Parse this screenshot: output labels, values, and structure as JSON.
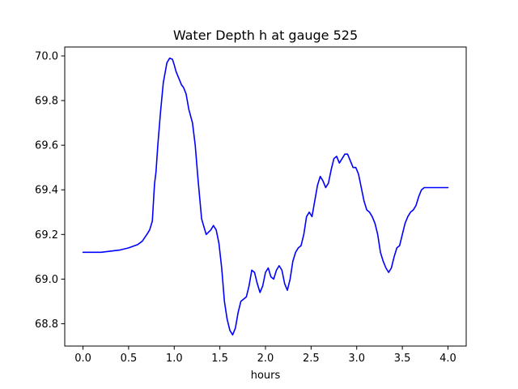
{
  "chart_data": {
    "type": "line",
    "title": "Water Depth h at gauge 525",
    "xlabel": "hours",
    "ylabel": "",
    "xlim": [
      -0.2,
      4.2
    ],
    "ylim": [
      68.7,
      70.04
    ],
    "grid": false,
    "legend": "none",
    "xticks": [
      0.0,
      0.5,
      1.0,
      1.5,
      2.0,
      2.5,
      3.0,
      3.5,
      4.0
    ],
    "xtick_labels": [
      "0.0",
      "0.5",
      "1.0",
      "1.5",
      "2.0",
      "2.5",
      "3.0",
      "3.5",
      "4.0"
    ],
    "yticks": [
      68.8,
      69.0,
      69.2,
      69.4,
      69.6,
      69.8,
      70.0
    ],
    "ytick_labels": [
      "68.8",
      "69.0",
      "69.2",
      "69.4",
      "69.6",
      "69.8",
      "70.0"
    ],
    "series": [
      {
        "name": "",
        "color": "#0000ff",
        "x": [
          0.0,
          0.1,
          0.2,
          0.3,
          0.4,
          0.5,
          0.6,
          0.65,
          0.7,
          0.73,
          0.76,
          0.78,
          0.785,
          0.8,
          0.82,
          0.85,
          0.88,
          0.92,
          0.95,
          0.98,
          1.0,
          1.02,
          1.05,
          1.08,
          1.1,
          1.13,
          1.16,
          1.2,
          1.23,
          1.26,
          1.3,
          1.35,
          1.4,
          1.43,
          1.46,
          1.49,
          1.52,
          1.55,
          1.58,
          1.61,
          1.64,
          1.67,
          1.7,
          1.73,
          1.76,
          1.79,
          1.82,
          1.85,
          1.88,
          1.91,
          1.94,
          1.97,
          2.0,
          2.03,
          2.06,
          2.09,
          2.12,
          2.15,
          2.18,
          2.21,
          2.24,
          2.27,
          2.3,
          2.33,
          2.36,
          2.39,
          2.42,
          2.45,
          2.48,
          2.51,
          2.54,
          2.57,
          2.6,
          2.63,
          2.66,
          2.69,
          2.72,
          2.75,
          2.78,
          2.81,
          2.84,
          2.87,
          2.9,
          2.93,
          2.96,
          2.99,
          3.02,
          3.05,
          3.08,
          3.11,
          3.14,
          3.17,
          3.2,
          3.23,
          3.26,
          3.29,
          3.32,
          3.35,
          3.38,
          3.41,
          3.44,
          3.47,
          3.5,
          3.53,
          3.56,
          3.59,
          3.62,
          3.65,
          3.68,
          3.71,
          3.74,
          3.77,
          3.8,
          3.83,
          3.86,
          3.89,
          3.92,
          3.95,
          3.98,
          4.0
        ],
        "y": [
          69.12,
          69.12,
          69.12,
          69.125,
          69.13,
          69.14,
          69.155,
          69.17,
          69.2,
          69.22,
          69.26,
          69.4,
          69.43,
          69.48,
          69.6,
          69.75,
          69.88,
          69.97,
          69.99,
          69.985,
          69.96,
          69.93,
          69.9,
          69.87,
          69.86,
          69.83,
          69.76,
          69.7,
          69.6,
          69.45,
          69.27,
          69.2,
          69.22,
          69.24,
          69.22,
          69.16,
          69.05,
          68.9,
          68.82,
          68.77,
          68.75,
          68.78,
          68.85,
          68.9,
          68.91,
          68.92,
          68.97,
          69.04,
          69.03,
          68.98,
          68.94,
          68.97,
          69.03,
          69.05,
          69.01,
          69.0,
          69.04,
          69.06,
          69.04,
          68.98,
          68.95,
          69.0,
          69.08,
          69.12,
          69.14,
          69.15,
          69.2,
          69.28,
          69.3,
          69.28,
          69.35,
          69.42,
          69.46,
          69.44,
          69.41,
          69.43,
          69.49,
          69.54,
          69.55,
          69.52,
          69.54,
          69.56,
          69.56,
          69.53,
          69.5,
          69.5,
          69.47,
          69.41,
          69.35,
          69.31,
          69.3,
          69.28,
          69.25,
          69.2,
          69.12,
          69.08,
          69.05,
          69.03,
          69.05,
          69.1,
          69.14,
          69.15,
          69.2,
          69.25,
          69.28,
          69.3,
          69.31,
          69.33,
          69.37,
          69.4,
          69.41,
          69.41,
          69.41,
          69.41,
          69.41,
          69.41,
          69.41,
          69.41,
          69.41,
          69.41
        ]
      }
    ]
  }
}
